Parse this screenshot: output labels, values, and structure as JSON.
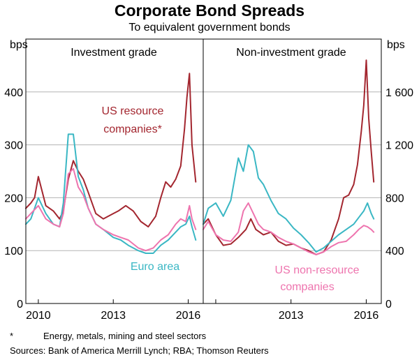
{
  "chart_data": {
    "type": "line",
    "title": "Corporate Bond Spreads",
    "subtitle": "To equivalent government bonds",
    "footnote": {
      "marker": "*",
      "text": "Energy, metals, mining and steel sectors"
    },
    "sources": "Sources:  Bank of America Merrill Lynch; RBA; Thomson Reuters",
    "xlim": [
      2009.5,
      2016.6
    ],
    "x_ticks": [
      "2010",
      "2013",
      "2016"
    ],
    "x_tick_values": [
      2010,
      2013,
      2016
    ],
    "panels": [
      {
        "name": "Investment grade",
        "ylabel": "bps",
        "axis_side": "left",
        "ylim": [
          0,
          500
        ],
        "y_ticks": [
          0,
          100,
          200,
          300,
          400
        ],
        "y_tick_labels": [
          "0",
          "100",
          "200",
          "300",
          "400"
        ],
        "annotations": [
          {
            "text": "US resource",
            "color": "#a3262f"
          },
          {
            "text": "companies*",
            "color": "#a3262f"
          },
          {
            "text": "Euro area",
            "color": "#3ab7c4"
          }
        ],
        "series": [
          {
            "name": "US resource companies",
            "color": "#a3262f",
            "x": [
              2009.5,
              2009.7,
              2009.85,
              2010.0,
              2010.3,
              2010.6,
              2010.85,
              2011.0,
              2011.2,
              2011.4,
              2011.6,
              2011.8,
              2012.0,
              2012.3,
              2012.6,
              2013.0,
              2013.2,
              2013.5,
              2013.8,
              2014.1,
              2014.4,
              2014.7,
              2014.9,
              2015.1,
              2015.3,
              2015.5,
              2015.7,
              2015.85,
              2015.95,
              2016.05,
              2016.15,
              2016.3
            ],
            "values": [
              180,
              190,
              200,
              240,
              185,
              175,
              160,
              175,
              235,
              270,
              250,
              235,
              210,
              170,
              160,
              170,
              175,
              185,
              175,
              155,
              145,
              165,
              200,
              230,
              220,
              235,
              260,
              330,
              390,
              435,
              300,
              230
            ]
          },
          {
            "name": "Euro area",
            "color": "#3ab7c4",
            "x": [
              2009.5,
              2009.7,
              2010.0,
              2010.3,
              2010.6,
              2010.85,
              2011.0,
              2011.2,
              2011.4,
              2011.6,
              2011.8,
              2012.0,
              2012.3,
              2012.6,
              2013.0,
              2013.3,
              2013.6,
              2014.0,
              2014.3,
              2014.6,
              2014.9,
              2015.2,
              2015.5,
              2015.7,
              2015.9,
              2016.05,
              2016.15,
              2016.3
            ],
            "values": [
              150,
              160,
              200,
              170,
              150,
              145,
              190,
              320,
              320,
              240,
              215,
              180,
              150,
              140,
              125,
              120,
              110,
              100,
              95,
              95,
              110,
              120,
              135,
              145,
              150,
              165,
              145,
              120
            ]
          },
          {
            "name": "US non-resource companies",
            "color": "#ee74ae",
            "x": [
              2009.5,
              2009.7,
              2010.0,
              2010.3,
              2010.6,
              2010.85,
              2011.0,
              2011.2,
              2011.4,
              2011.6,
              2011.8,
              2012.0,
              2012.3,
              2012.6,
              2013.0,
              2013.3,
              2013.6,
              2014.0,
              2014.3,
              2014.6,
              2014.9,
              2015.2,
              2015.5,
              2015.7,
              2015.9,
              2016.05,
              2016.15,
              2016.3
            ],
            "values": [
              160,
              170,
              185,
              160,
              150,
              145,
              170,
              245,
              255,
              220,
              205,
              180,
              150,
              140,
              130,
              125,
              120,
              105,
              100,
              105,
              120,
              130,
              150,
              160,
              155,
              185,
              160,
              140
            ]
          }
        ]
      },
      {
        "name": "Non-investment grade",
        "ylabel": "bps",
        "axis_side": "right",
        "ylim": [
          0,
          2000
        ],
        "y_ticks": [
          0,
          400,
          800,
          1200,
          1600
        ],
        "y_tick_labels": [
          "0",
          "400",
          "800",
          "1 200",
          "1 600"
        ],
        "annotations": [
          {
            "text": "US non-resource",
            "color": "#ee74ae"
          },
          {
            "text": "companies",
            "color": "#ee74ae"
          }
        ],
        "series": [
          {
            "name": "US resource companies",
            "color": "#a3262f",
            "x": [
              2009.5,
              2009.7,
              2010.0,
              2010.3,
              2010.6,
              2010.9,
              2011.2,
              2011.4,
              2011.6,
              2011.9,
              2012.2,
              2012.5,
              2012.8,
              2013.1,
              2013.4,
              2013.7,
              2014.0,
              2014.3,
              2014.6,
              2014.9,
              2015.1,
              2015.3,
              2015.5,
              2015.65,
              2015.8,
              2015.9,
              2016.0,
              2016.1,
              2016.2,
              2016.3
            ],
            "values": [
              600,
              640,
              520,
              440,
              450,
              500,
              560,
              640,
              560,
              520,
              540,
              470,
              440,
              450,
              420,
              400,
              370,
              390,
              480,
              640,
              800,
              820,
              900,
              1050,
              1300,
              1500,
              1840,
              1400,
              1150,
              920
            ]
          },
          {
            "name": "Euro area",
            "color": "#3ab7c4",
            "x": [
              2009.5,
              2009.7,
              2010.0,
              2010.3,
              2010.6,
              2010.9,
              2011.1,
              2011.3,
              2011.5,
              2011.7,
              2011.9,
              2012.2,
              2012.5,
              2012.8,
              2013.1,
              2013.4,
              2013.7,
              2014.0,
              2014.3,
              2014.6,
              2014.9,
              2015.2,
              2015.5,
              2015.7,
              2015.9,
              2016.05,
              2016.2,
              2016.3
            ],
            "values": [
              600,
              720,
              760,
              660,
              780,
              1100,
              1000,
              1200,
              1150,
              950,
              900,
              780,
              680,
              640,
              570,
              520,
              460,
              390,
              420,
              470,
              520,
              560,
              600,
              650,
              700,
              760,
              680,
              640
            ]
          },
          {
            "name": "US non-resource companies",
            "color": "#ee74ae",
            "x": [
              2009.5,
              2009.7,
              2010.0,
              2010.3,
              2010.6,
              2010.9,
              2011.1,
              2011.3,
              2011.5,
              2011.7,
              2011.9,
              2012.2,
              2012.5,
              2012.8,
              2013.1,
              2013.4,
              2013.7,
              2014.0,
              2014.3,
              2014.6,
              2014.9,
              2015.2,
              2015.5,
              2015.7,
              2015.9,
              2016.05,
              2016.2,
              2016.3
            ],
            "values": [
              560,
              620,
              520,
              480,
              470,
              540,
              700,
              760,
              680,
              600,
              560,
              540,
              500,
              470,
              450,
              420,
              390,
              370,
              390,
              430,
              460,
              470,
              520,
              560,
              590,
              580,
              560,
              540
            ]
          }
        ]
      }
    ]
  }
}
